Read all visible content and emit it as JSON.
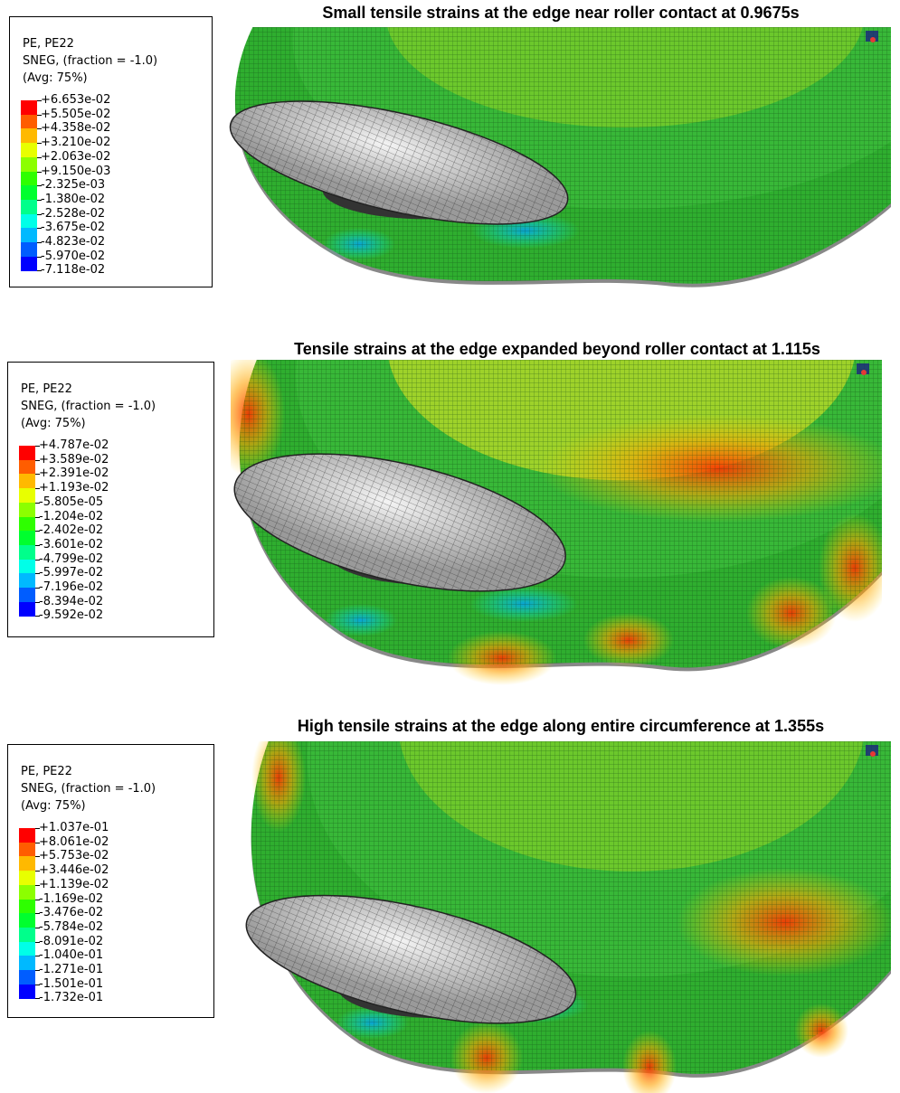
{
  "panels": [
    {
      "title": "Small tensile strains at the edge near roller contact at 0.9675s",
      "legend": {
        "variable": "PE, PE22",
        "section": "SNEG, (fraction = -1.0)",
        "averaging": "(Avg: 75%)",
        "labels": [
          "+6.653e-02",
          "+5.505e-02",
          "+4.358e-02",
          "+3.210e-02",
          "+2.063e-02",
          "+9.150e-03",
          "-2.325e-03",
          "-1.380e-02",
          "-2.528e-02",
          "-3.675e-02",
          "-4.823e-02",
          "-5.970e-02",
          "-7.118e-02"
        ]
      }
    },
    {
      "title": "Tensile strains at the edge expanded beyond roller contact at 1.115s",
      "legend": {
        "variable": "PE, PE22",
        "section": "SNEG, (fraction = -1.0)",
        "averaging": "(Avg: 75%)",
        "labels": [
          "+4.787e-02",
          "+3.589e-02",
          "+2.391e-02",
          "+1.193e-02",
          "-5.805e-05",
          "-1.204e-02",
          "-2.402e-02",
          "-3.601e-02",
          "-4.799e-02",
          "-5.997e-02",
          "-7.196e-02",
          "-8.394e-02",
          "-9.592e-02"
        ]
      }
    },
    {
      "title": "High tensile strains at the edge along entire circumference at 1.355s",
      "legend": {
        "variable": "PE, PE22",
        "section": "SNEG, (fraction = -1.0)",
        "averaging": "(Avg: 75%)",
        "labels": [
          "+1.037e-01",
          "+8.061e-02",
          "+5.753e-02",
          "+3.446e-02",
          "+1.139e-02",
          "-1.169e-02",
          "-3.476e-02",
          "-5.784e-02",
          "-8.091e-02",
          "-1.040e-01",
          "-1.271e-01",
          "-1.501e-01",
          "-1.732e-01"
        ]
      }
    }
  ]
}
